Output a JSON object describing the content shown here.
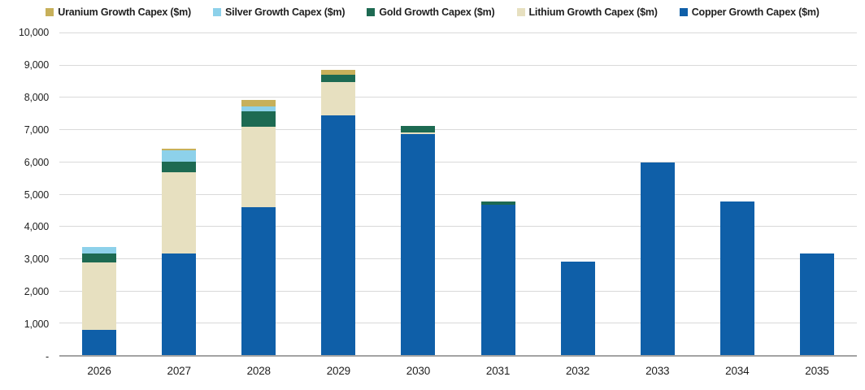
{
  "chart_data": {
    "type": "bar",
    "subtype": "stacked-vertical",
    "title": "",
    "xlabel": "",
    "ylabel": "",
    "categories": [
      "2026",
      "2027",
      "2028",
      "2029",
      "2030",
      "2031",
      "2032",
      "2033",
      "2034",
      "2035"
    ],
    "series": [
      {
        "name": "Copper Growth Capex ($m)",
        "color": "#0f5fa8",
        "values": [
          780,
          3160,
          4580,
          7440,
          6850,
          4650,
          2890,
          5960,
          4760,
          3160
        ]
      },
      {
        "name": "Lithium Growth Capex ($m)",
        "color": "#e7e0c0",
        "values": [
          2090,
          2500,
          2510,
          1020,
          60,
          0,
          0,
          0,
          0,
          0
        ]
      },
      {
        "name": "Gold Growth Capex ($m)",
        "color": "#1d6a52",
        "values": [
          280,
          330,
          480,
          220,
          190,
          100,
          0,
          0,
          0,
          0
        ]
      },
      {
        "name": "Silver Growth Capex ($m)",
        "color": "#8dd1ea",
        "values": [
          200,
          350,
          150,
          0,
          0,
          0,
          0,
          0,
          0,
          0
        ]
      },
      {
        "name": "Uranium Growth Capex ($m)",
        "color": "#c7b05a",
        "values": [
          0,
          60,
          200,
          160,
          0,
          0,
          0,
          0,
          0,
          0
        ]
      }
    ],
    "legend": [
      {
        "label": "Uranium Growth Capex ($m)",
        "color": "#c7b05a"
      },
      {
        "label": "Silver Growth Capex ($m)",
        "color": "#8dd1ea"
      },
      {
        "label": "Gold Growth Capex ($m)",
        "color": "#1d6a52"
      },
      {
        "label": "Lithium Growth Capex ($m)",
        "color": "#e7e0c0"
      },
      {
        "label": "Copper Growth Capex ($m)",
        "color": "#0f5fa8"
      }
    ],
    "legend_position": "top",
    "grid": true,
    "ylim": [
      0,
      10000
    ],
    "y_tick_step": 1000,
    "y_ticks": [
      "10,000",
      "9,000",
      "8,000",
      "7,000",
      "6,000",
      "5,000",
      "4,000",
      "3,000",
      "2,000",
      "1,000",
      "-"
    ]
  },
  "colors": {
    "gridline": "#d9d9d9",
    "axis_line": "#a3a3a3",
    "text": "#1f1f1f",
    "background": "#ffffff"
  }
}
